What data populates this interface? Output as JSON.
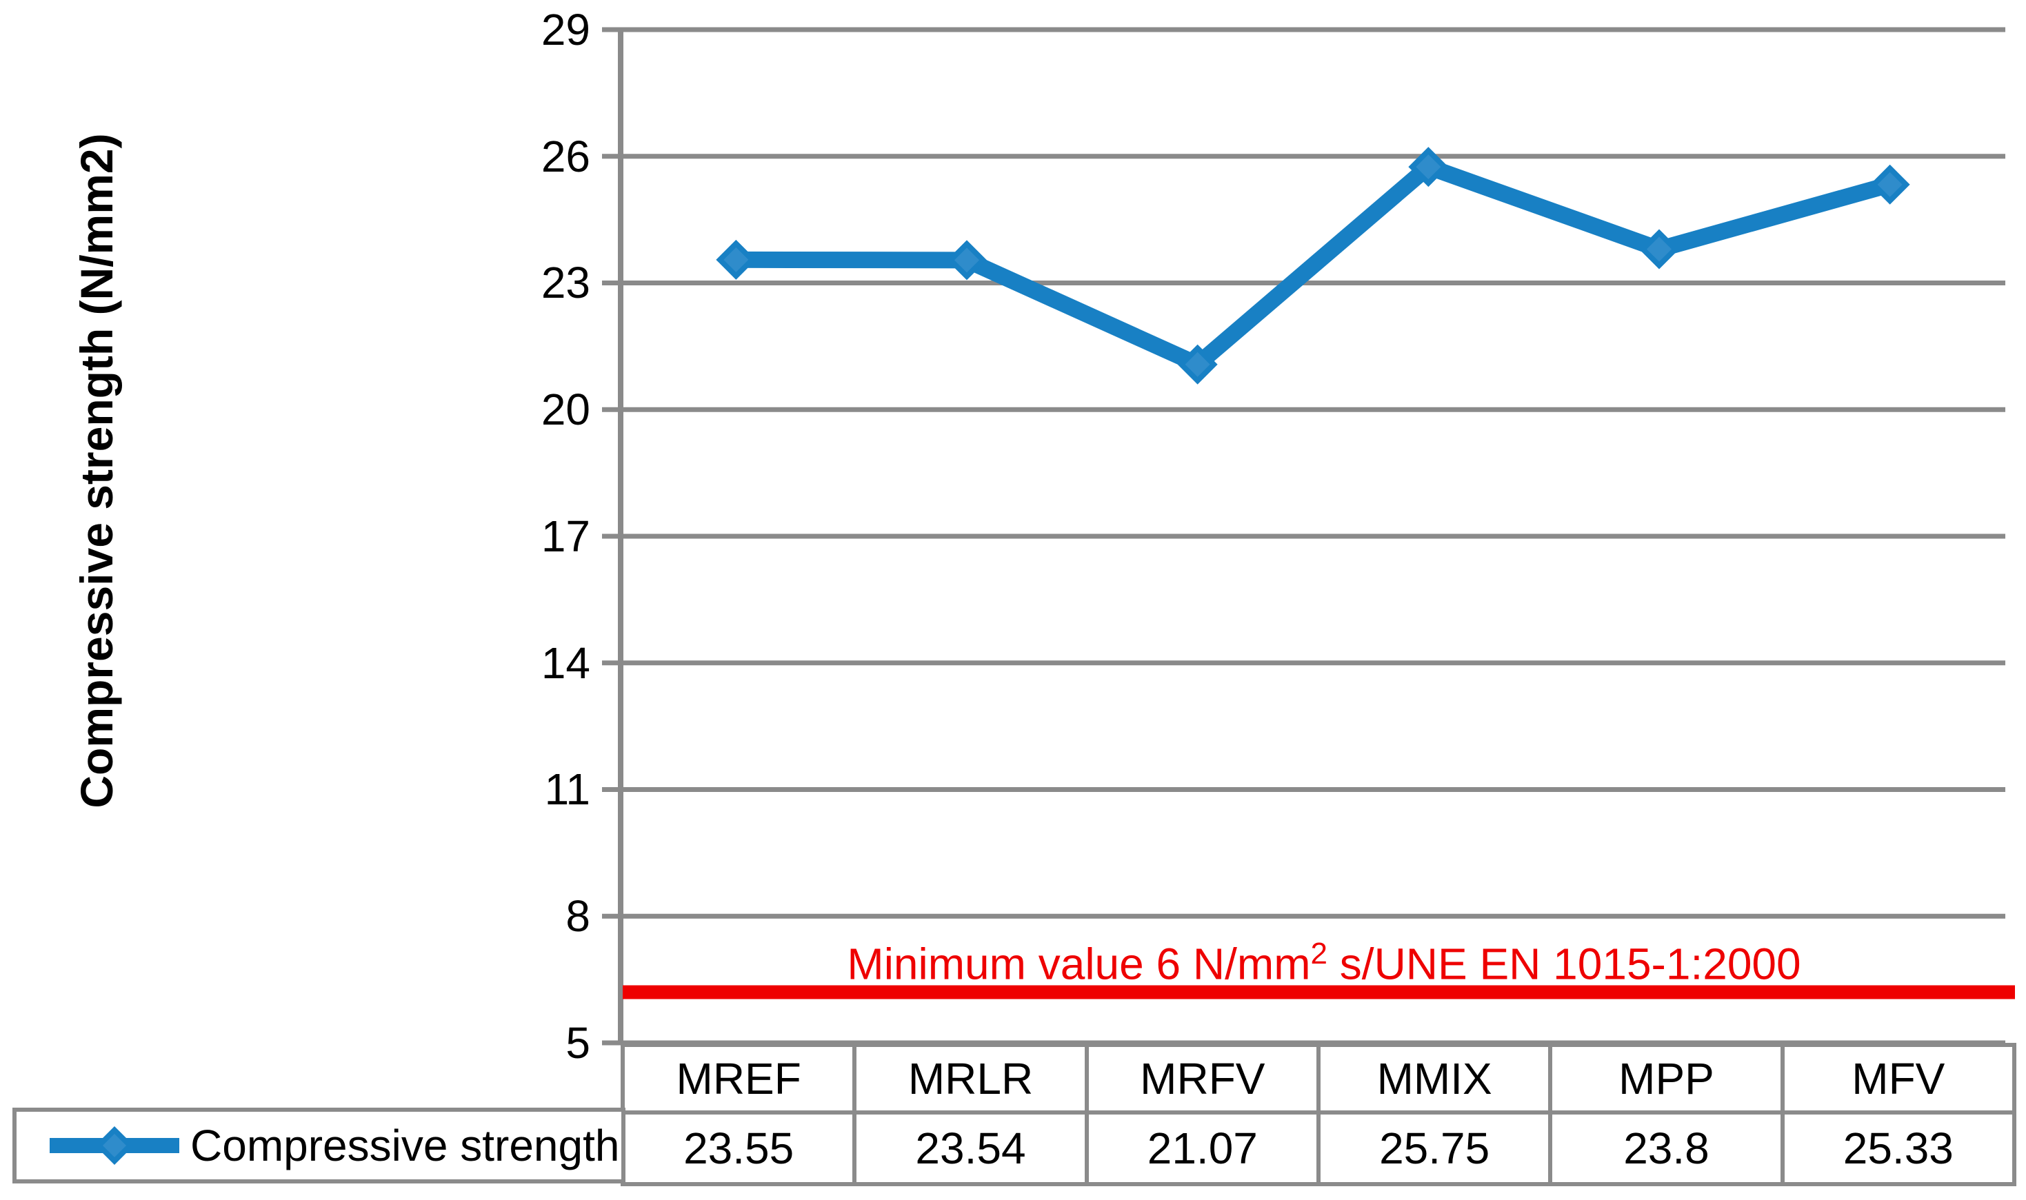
{
  "chart_data": {
    "type": "line",
    "title": "",
    "xlabel": "",
    "ylabel": "Compressive strength (N/mm2)",
    "categories": [
      "MREF",
      "MRLR",
      "MRFV",
      "MMIX",
      "MPP",
      "MFV"
    ],
    "series": [
      {
        "name": "Compressive strength",
        "values": [
          23.55,
          23.54,
          21.07,
          25.75,
          23.8,
          25.33
        ]
      }
    ],
    "ylim": [
      5,
      29
    ],
    "yticks": [
      29,
      26,
      23,
      20,
      17,
      14,
      11,
      8,
      5
    ],
    "grid": true,
    "legend_position": "bottom-table",
    "annotation": {
      "label": "Minimum value 6 N/mm2 s/UNE EN 1015-1:2000",
      "line_value": 6.2
    }
  },
  "annotation_display": {
    "prefix": "Minimum value 6 N/mm",
    "sup": "2",
    "suffix": " s/UNE EN 1015-1:2000"
  },
  "colors": {
    "series_line": "#1880C4",
    "marker_inner": "#2F8CCB",
    "min_line": "#EE0000",
    "annotation_text": "#EE0000",
    "grid": "#8A8A8A",
    "axis": "#8A8A8A",
    "table_border": "#8B8B8B",
    "text": "#000000"
  }
}
